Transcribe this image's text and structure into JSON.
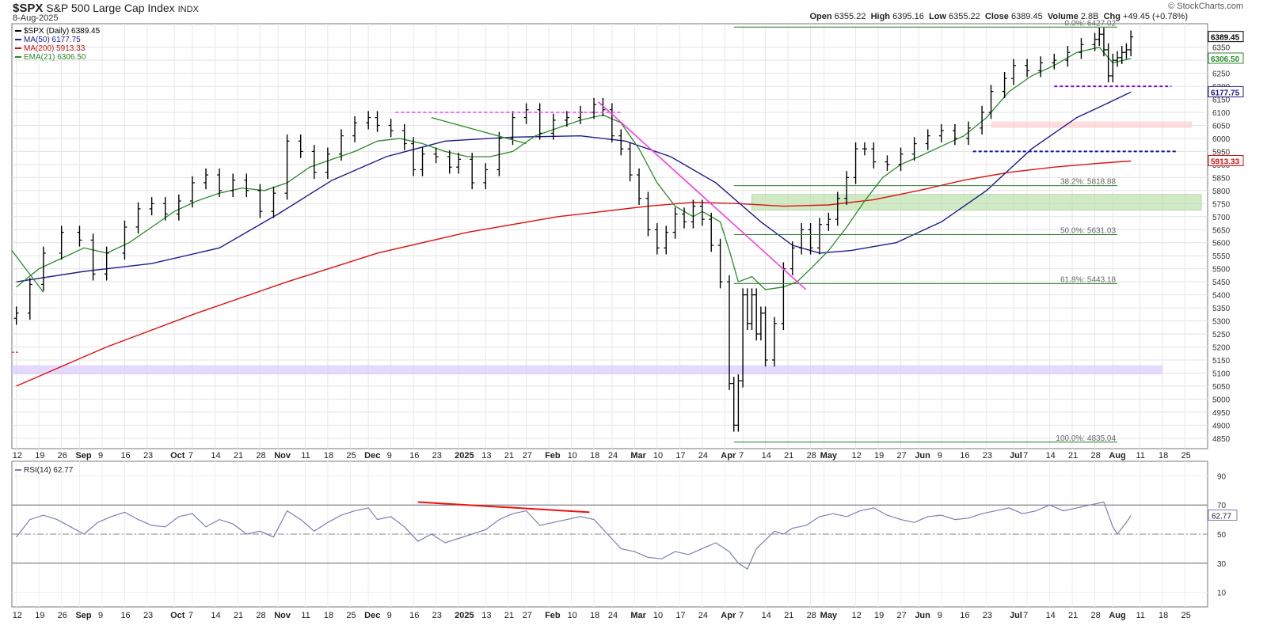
{
  "header": {
    "symbol": "$SPX",
    "name": "S&P 500 Large Cap Index",
    "exchange": "INDX",
    "date": "8-Aug-2025",
    "open_label": "Open",
    "open": "6355.22",
    "high_label": "High",
    "high": "6395.16",
    "low_label": "Low",
    "low": "6355.22",
    "close_label": "Close",
    "close": "6389.45",
    "volume_label": "Volume",
    "volume": "2.8B",
    "chg_label": "Chg",
    "chg": "+49.45 (+0.78%)",
    "credit": "© StockCharts.com"
  },
  "legend": [
    {
      "text": "$SPX (Daily) 6389.45",
      "color": "#000000"
    },
    {
      "text": "MA(50) 6177.75",
      "color": "#1c1c8c"
    },
    {
      "text": "MA(200) 5913.33",
      "color": "#cc1111"
    },
    {
      "text": "EMA(21) 6306.50",
      "color": "#2a8a2a"
    }
  ],
  "rsi_legend": "RSI(14) 62.77",
  "price_axis_ticks": [
    "4850",
    "4900",
    "4950",
    "5000",
    "5050",
    "5100",
    "5150",
    "5200",
    "5250",
    "5300",
    "5350",
    "5400",
    "5450",
    "5500",
    "5550",
    "5600",
    "5650",
    "5700",
    "5750",
    "5800",
    "5850",
    "5900",
    "5950",
    "6000",
    "6050",
    "6100",
    "6150",
    "6200",
    "6250",
    "6300",
    "6350"
  ],
  "price_axis_tags": [
    {
      "text": "6389.45",
      "value": 6389.45,
      "color": "#000000"
    },
    {
      "text": "6306.50",
      "value": 6306.5,
      "color": "#2a8a2a"
    },
    {
      "text": "6177.75",
      "value": 6177.75,
      "color": "#1c1c8c"
    },
    {
      "text": "5913.33",
      "value": 5913.33,
      "color": "#cc1111"
    }
  ],
  "rsi_axis_ticks": [
    "10",
    "30",
    "50",
    "70",
    "90"
  ],
  "rsi_tag": {
    "text": "62.77",
    "value": 62.77
  },
  "x_ticks": [
    {
      "label": "12",
      "day": 0
    },
    {
      "label": "19",
      "day": 5
    },
    {
      "label": "26",
      "day": 10
    },
    {
      "label": "Sep",
      "day": 14,
      "bold": true
    },
    {
      "label": "9",
      "day": 19
    },
    {
      "label": "16",
      "day": 24
    },
    {
      "label": "23",
      "day": 29
    },
    {
      "label": "Oct",
      "day": 35,
      "bold": true
    },
    {
      "label": "7",
      "day": 39
    },
    {
      "label": "14",
      "day": 44
    },
    {
      "label": "21",
      "day": 49
    },
    {
      "label": "28",
      "day": 54
    },
    {
      "label": "Nov",
      "day": 58,
      "bold": true
    },
    {
      "label": "11",
      "day": 64
    },
    {
      "label": "18",
      "day": 69
    },
    {
      "label": "25",
      "day": 74
    },
    {
      "label": "Dec",
      "day": 78,
      "bold": true
    },
    {
      "label": "9",
      "day": 83
    },
    {
      "label": "16",
      "day": 88
    },
    {
      "label": "23",
      "day": 93
    },
    {
      "label": "2025",
      "day": 98,
      "bold": true
    },
    {
      "label": "13",
      "day": 104
    },
    {
      "label": "21",
      "day": 109
    },
    {
      "label": "27",
      "day": 113
    },
    {
      "label": "Feb",
      "day": 118,
      "bold": true
    },
    {
      "label": "10",
      "day": 123
    },
    {
      "label": "18",
      "day": 128
    },
    {
      "label": "24",
      "day": 132
    },
    {
      "label": "Mar",
      "day": 137,
      "bold": true
    },
    {
      "label": "10",
      "day": 142
    },
    {
      "label": "17",
      "day": 147
    },
    {
      "label": "24",
      "day": 152
    },
    {
      "label": "Apr",
      "day": 157,
      "bold": true
    },
    {
      "label": "7",
      "day": 161
    },
    {
      "label": "14",
      "day": 166
    },
    {
      "label": "21",
      "day": 171
    },
    {
      "label": "28",
      "day": 176
    },
    {
      "label": "May",
      "day": 179,
      "bold": true
    },
    {
      "label": "12",
      "day": 186
    },
    {
      "label": "19",
      "day": 191
    },
    {
      "label": "27",
      "day": 196
    },
    {
      "label": "Jun",
      "day": 200,
      "bold": true
    },
    {
      "label": "9",
      "day": 205
    },
    {
      "label": "16",
      "day": 210
    },
    {
      "label": "23",
      "day": 215
    },
    {
      "label": "Jul",
      "day": 221,
      "bold": true
    },
    {
      "label": "7",
      "day": 224
    },
    {
      "label": "14",
      "day": 229
    },
    {
      "label": "21",
      "day": 234
    },
    {
      "label": "28",
      "day": 239
    },
    {
      "label": "Aug",
      "day": 243,
      "bold": true
    },
    {
      "label": "11",
      "day": 249
    },
    {
      "label": "18",
      "day": 254
    },
    {
      "label": "25",
      "day": 259
    }
  ],
  "chart_data": {
    "type": "line",
    "series_price_close": {
      "name": "$SPX (Daily)",
      "days": [
        0,
        3,
        6,
        10,
        14,
        17,
        20,
        24,
        27,
        30,
        33,
        36,
        39,
        42,
        45,
        48,
        51,
        54,
        57,
        60,
        63,
        66,
        69,
        72,
        75,
        78,
        80,
        83,
        86,
        88,
        90,
        93,
        96,
        98,
        101,
        104,
        107,
        110,
        113,
        116,
        119,
        122,
        125,
        128,
        130,
        132,
        134,
        136,
        138,
        140,
        142,
        144,
        146,
        148,
        150,
        152,
        154,
        156,
        158,
        159,
        160,
        161,
        162,
        163,
        164,
        165,
        166,
        168,
        170,
        172,
        174,
        176,
        178,
        180,
        182,
        184,
        186,
        188,
        190,
        193,
        196,
        199,
        202,
        205,
        208,
        211,
        214,
        216,
        219,
        221,
        224,
        227,
        230,
        233,
        236,
        239,
        240,
        241,
        242,
        243,
        244,
        245,
        246,
        247
      ],
      "values": [
        5330,
        5440,
        5560,
        5640,
        5610,
        5480,
        5560,
        5660,
        5730,
        5750,
        5710,
        5760,
        5830,
        5860,
        5800,
        5840,
        5800,
        5720,
        5790,
        5990,
        5950,
        5870,
        5940,
        6010,
        6060,
        6080,
        6050,
        6030,
        5980,
        5880,
        5940,
        5930,
        5890,
        5920,
        5830,
        5880,
        6000,
        6080,
        6110,
        6020,
        6070,
        6080,
        6100,
        6130,
        6110,
        6010,
        5960,
        5860,
        5770,
        5650,
        5580,
        5640,
        5710,
        5680,
        5740,
        5690,
        5590,
        5450,
        5060,
        4900,
        5070,
        5400,
        5290,
        5400,
        5250,
        5330,
        5150,
        5290,
        5500,
        5580,
        5650,
        5580,
        5670,
        5690,
        5770,
        5850,
        5960,
        5960,
        5910,
        5900,
        5940,
        5980,
        6010,
        6030,
        6000,
        6040,
        6100,
        6180,
        6230,
        6280,
        6260,
        6290,
        6300,
        6330,
        6360,
        6380,
        6400,
        6340,
        6240,
        6300,
        6310,
        6330,
        6340,
        6389.45
      ]
    },
    "series_ma50": {
      "name": "MA(50)",
      "days": [
        0,
        15,
        30,
        45,
        58,
        70,
        82,
        95,
        110,
        125,
        135,
        145,
        155,
        165,
        172,
        178,
        185,
        195,
        205,
        215,
        225,
        235,
        240,
        247
      ],
      "values": [
        5450,
        5490,
        5520,
        5580,
        5710,
        5840,
        5930,
        5990,
        6005,
        6010,
        5990,
        5930,
        5830,
        5680,
        5590,
        5560,
        5570,
        5600,
        5680,
        5800,
        5960,
        6080,
        6120,
        6177.75
      ]
    },
    "series_ma200": {
      "name": "MA(200)",
      "days": [
        0,
        20,
        40,
        60,
        80,
        100,
        120,
        140,
        150,
        160,
        170,
        180,
        190,
        200,
        210,
        220,
        230,
        240,
        247
      ],
      "values": [
        5050,
        5200,
        5330,
        5450,
        5560,
        5640,
        5700,
        5740,
        5755,
        5750,
        5740,
        5745,
        5765,
        5800,
        5840,
        5870,
        5890,
        5905,
        5913.33
      ]
    },
    "series_ema21": {
      "name": "EMA(21)",
      "days": [
        0,
        5,
        10,
        15,
        20,
        25,
        30,
        35,
        40,
        45,
        50,
        55,
        60,
        65,
        70,
        75,
        80,
        85,
        90,
        95,
        100,
        105,
        110,
        115,
        120,
        125,
        130,
        134,
        138,
        142,
        146,
        150,
        152,
        156,
        158,
        160,
        163,
        166,
        170,
        173,
        176,
        180,
        184,
        188,
        192,
        196,
        200,
        205,
        210,
        215,
        220,
        225,
        230,
        235,
        240,
        243,
        247
      ],
      "values": [
        5430,
        5500,
        5540,
        5580,
        5560,
        5600,
        5660,
        5720,
        5760,
        5790,
        5810,
        5800,
        5830,
        5890,
        5920,
        5950,
        5990,
        6000,
        5980,
        5950,
        5930,
        5930,
        5950,
        6010,
        6040,
        6070,
        6090,
        6060,
        5960,
        5830,
        5740,
        5700,
        5720,
        5680,
        5570,
        5450,
        5470,
        5420,
        5430,
        5450,
        5500,
        5570,
        5660,
        5760,
        5850,
        5900,
        5930,
        5970,
        6010,
        6080,
        6180,
        6240,
        6280,
        6330,
        6350,
        6290,
        6306.5
      ]
    },
    "series_rsi": {
      "name": "RSI(14)",
      "days": [
        0,
        3,
        6,
        9,
        12,
        15,
        18,
        21,
        24,
        27,
        30,
        33,
        36,
        39,
        42,
        45,
        48,
        51,
        54,
        57,
        60,
        63,
        66,
        69,
        72,
        75,
        78,
        80,
        83,
        86,
        89,
        92,
        95,
        98,
        101,
        104,
        107,
        110,
        113,
        116,
        119,
        122,
        125,
        128,
        131,
        134,
        137,
        140,
        143,
        146,
        149,
        152,
        155,
        158,
        160,
        162,
        164,
        166,
        168,
        170,
        172,
        175,
        178,
        181,
        184,
        187,
        190,
        193,
        196,
        199,
        202,
        205,
        208,
        211,
        214,
        217,
        220,
        223,
        226,
        229,
        232,
        235,
        238,
        241,
        243,
        244,
        246,
        247
      ],
      "values": [
        48,
        60,
        63,
        60,
        55,
        50,
        58,
        62,
        65,
        60,
        56,
        55,
        62,
        64,
        55,
        60,
        57,
        50,
        52,
        48,
        66,
        60,
        52,
        58,
        63,
        66,
        68,
        60,
        62,
        55,
        45,
        50,
        44,
        47,
        50,
        53,
        60,
        64,
        66,
        56,
        58,
        60,
        62,
        60,
        50,
        40,
        38,
        34,
        33,
        38,
        36,
        40,
        44,
        38,
        30,
        26,
        40,
        46,
        52,
        50,
        54,
        56,
        62,
        64,
        62,
        66,
        68,
        63,
        60,
        58,
        62,
        63,
        60,
        61,
        64,
        66,
        68,
        64,
        66,
        70,
        66,
        68,
        70,
        72,
        55,
        50,
        58,
        62.77
      ],
      "overbought": 70,
      "oversold": 30,
      "mid": 50
    },
    "fibonacci": [
      {
        "label": "0.0%: 6427.02",
        "value": 6427.02
      },
      {
        "label": "38.2%: 5818.88",
        "value": 5818.88
      },
      {
        "label": "50.0%: 5631.03",
        "value": 5631.03
      },
      {
        "label": "61.8%: 5443.18",
        "value": 5443.18
      },
      {
        "label": "100.0%: 4835.04",
        "value": 4835.04
      }
    ],
    "price_ylim": [
      4810,
      6440
    ],
    "rsi_ylim": [
      0,
      100
    ],
    "x_range_days": [
      -1,
      264
    ]
  }
}
